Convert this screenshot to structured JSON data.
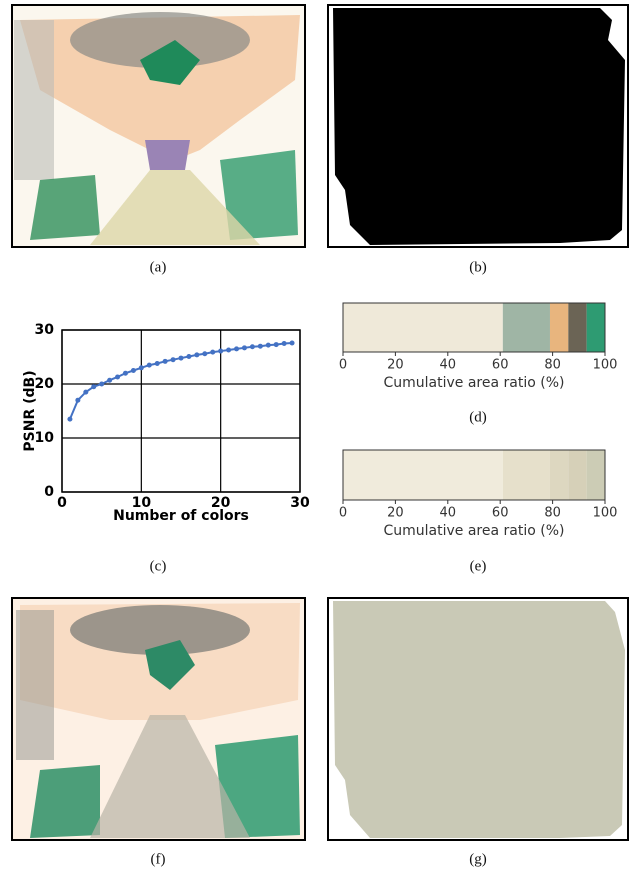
{
  "captions": [
    "(a)",
    "(b)",
    "(c)",
    "(d)",
    "(e)",
    "(f)",
    "(g)"
  ],
  "chart_data": [
    {
      "type": "line",
      "x": [
        1,
        2,
        3,
        4,
        5,
        6,
        7,
        8,
        9,
        10,
        11,
        12,
        13,
        14,
        15,
        16,
        17,
        18,
        19,
        20,
        21,
        22,
        23,
        24,
        25,
        26,
        27,
        28,
        29
      ],
      "values": [
        13.5,
        17,
        18.5,
        19.5,
        20,
        20.7,
        21.3,
        22,
        22.5,
        23,
        23.5,
        23.8,
        24.2,
        24.5,
        24.8,
        25.1,
        25.4,
        25.6,
        25.9,
        26.1,
        26.3,
        26.5,
        26.7,
        26.9,
        27,
        27.2,
        27.3,
        27.5,
        27.6
      ],
      "color": "#4472c4",
      "xlabel": "Number of colors",
      "ylabel": "PSNR (dB)",
      "xlim": [
        0,
        30
      ],
      "ylim": [
        0,
        30
      ],
      "xticks": [
        0,
        10,
        20,
        30
      ],
      "yticks": [
        0,
        10,
        20,
        30
      ],
      "grid": true
    },
    {
      "type": "stacked-bar",
      "values": [
        61,
        18,
        7,
        7,
        7
      ],
      "colors": [
        "#efe9d9",
        "#9fb5a5",
        "#e8b57e",
        "#6b6455",
        "#2e9b72"
      ],
      "xlabel": "Cumulative area ratio (%)",
      "xlim": [
        0,
        100
      ],
      "xticks": [
        0,
        20,
        40,
        60,
        80,
        100
      ]
    },
    {
      "type": "stacked-bar",
      "values": [
        61,
        18,
        7,
        7,
        7
      ],
      "colors": [
        "#f0ebdc",
        "#e6e0cb",
        "#ddd7c0",
        "#d6d0b8",
        "#ccccb5"
      ],
      "xlabel": "Cumulative area ratio (%)",
      "xlim": [
        0,
        100
      ],
      "xticks": [
        0,
        20,
        40,
        60,
        80,
        100
      ]
    }
  ]
}
